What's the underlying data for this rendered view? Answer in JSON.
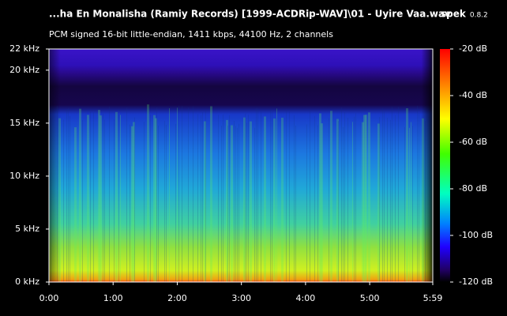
{
  "chart_data": {
    "type": "spectrogram",
    "title": "...ha En Monalisha (Ramiy Records) [1999-ACDRip-WAV]\\01 - Uyire Vaa.wav",
    "app_name": "spek",
    "app_version": "0.8.2",
    "subtitle": "PCM signed 16-bit little-endian, 1411 kbps, 44100 Hz, 2 channels",
    "xlim": [
      0,
      359
    ],
    "xticks": [
      {
        "value": 0,
        "label": "0:00"
      },
      {
        "value": 60,
        "label": "1:00"
      },
      {
        "value": 120,
        "label": "2:00"
      },
      {
        "value": 180,
        "label": "3:00"
      },
      {
        "value": 240,
        "label": "4:00"
      },
      {
        "value": 300,
        "label": "5:00"
      },
      {
        "value": 359,
        "label": "5:59"
      }
    ],
    "ylim": [
      0,
      22
    ],
    "yticks": [
      {
        "value": 0,
        "label": "0 kHz"
      },
      {
        "value": 5,
        "label": "5 kHz"
      },
      {
        "value": 10,
        "label": "10 kHz"
      },
      {
        "value": 15,
        "label": "15 kHz"
      },
      {
        "value": 20,
        "label": "20 kHz"
      },
      {
        "value": 22,
        "label": "22 kHz"
      }
    ],
    "clim": [
      -120,
      -20
    ],
    "cticks": [
      {
        "value": -20,
        "label": "-20 dB"
      },
      {
        "value": -40,
        "label": "-40 dB"
      },
      {
        "value": -60,
        "label": "-60 dB"
      },
      {
        "value": -80,
        "label": "-80 dB"
      },
      {
        "value": -100,
        "label": "-100 dB"
      },
      {
        "value": -120,
        "label": "-120 dB"
      }
    ]
  }
}
